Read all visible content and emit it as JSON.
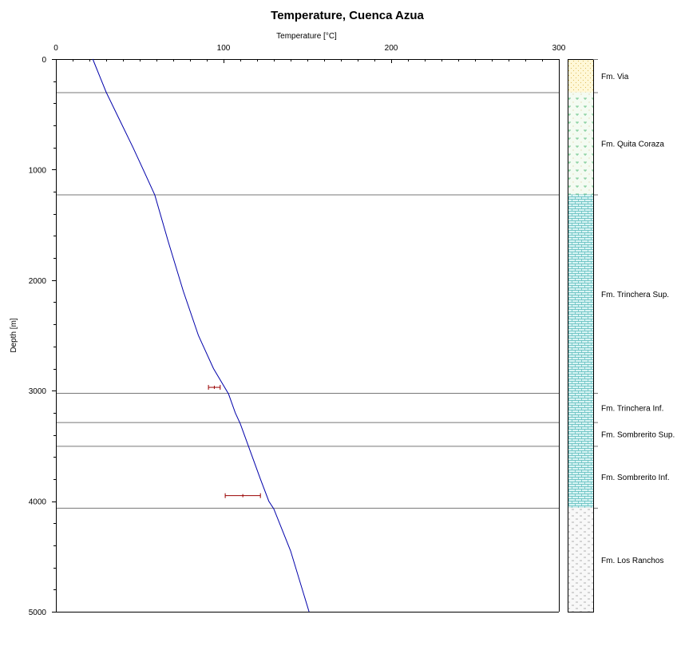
{
  "chart_data": {
    "type": "line",
    "title": "Temperature, Cuenca Azua",
    "xlabel": "Temperature [°C]",
    "ylabel": "Depth [m]",
    "xlim": [
      0,
      300
    ],
    "ylim": [
      0,
      5000
    ],
    "y_inverted": true,
    "x_axis_position": "top",
    "x_ticks": [
      0,
      100,
      200,
      300
    ],
    "x_minor_step": 10,
    "y_ticks": [
      0,
      1000,
      2000,
      3000,
      4000,
      5000
    ],
    "y_minor_step": 200,
    "grid": false,
    "colors": {
      "temperature_line": "#0000aa",
      "measurement": "#990000",
      "boundary": "#777777",
      "axis": "#000000"
    },
    "series": [
      {
        "points": [
          {
            "x": 22,
            "y": 0
          },
          {
            "x": 30,
            "y": 300
          },
          {
            "x": 38,
            "y": 550
          },
          {
            "x": 46,
            "y": 800
          },
          {
            "x": 53,
            "y": 1030
          },
          {
            "x": 59,
            "y": 1230
          },
          {
            "x": 67,
            "y": 1650
          },
          {
            "x": 76,
            "y": 2100
          },
          {
            "x": 85,
            "y": 2500
          },
          {
            "x": 94,
            "y": 2800
          },
          {
            "x": 103,
            "y": 3030
          },
          {
            "x": 107,
            "y": 3200
          },
          {
            "x": 110,
            "y": 3300
          },
          {
            "x": 116,
            "y": 3550
          },
          {
            "x": 122,
            "y": 3800
          },
          {
            "x": 127,
            "y": 4000
          },
          {
            "x": 130,
            "y": 4070
          },
          {
            "x": 140,
            "y": 4450
          },
          {
            "x": 151,
            "y": 5000
          }
        ]
      }
    ],
    "measurements": [
      {
        "depth": 2970,
        "t_min": 91,
        "t_max": 98
      },
      {
        "depth": 3950,
        "t_min": 101,
        "t_max": 122
      }
    ],
    "formations": [
      {
        "name": "Fm. Via",
        "top": 0,
        "base": 300,
        "fill": "#fff8d8",
        "mark": "#e0c060",
        "pattern": "dots"
      },
      {
        "name": "Fm. Quita Coraza",
        "top": 300,
        "base": 1225,
        "fill": "#f4fbf2",
        "mark": "#55bb77",
        "pattern": "ticks"
      },
      {
        "name": "Fm. Trinchera Sup.",
        "top": 1225,
        "base": 3020,
        "fill": "#d8f4f4",
        "mark": "#55b8b8",
        "pattern": "bricks"
      },
      {
        "name": "Fm. Trinchera Inf.",
        "top": 3020,
        "base": 3285,
        "fill": "#d8f4f4",
        "mark": "#55b8b8",
        "pattern": "bricks"
      },
      {
        "name": "Fm. Sombrerito Sup.",
        "top": 3285,
        "base": 3500,
        "fill": "#d8f4f4",
        "mark": "#55b8b8",
        "pattern": "bricks"
      },
      {
        "name": "Fm. Sombrerito Inf.",
        "top": 3500,
        "base": 4060,
        "fill": "#d8f4f4",
        "mark": "#55b8b8",
        "pattern": "bricks"
      },
      {
        "name": "Fm. Los Ranchos",
        "top": 4060,
        "base": 5000,
        "fill": "#f8f8f8",
        "mark": "#999999",
        "pattern": "dashes"
      }
    ]
  }
}
